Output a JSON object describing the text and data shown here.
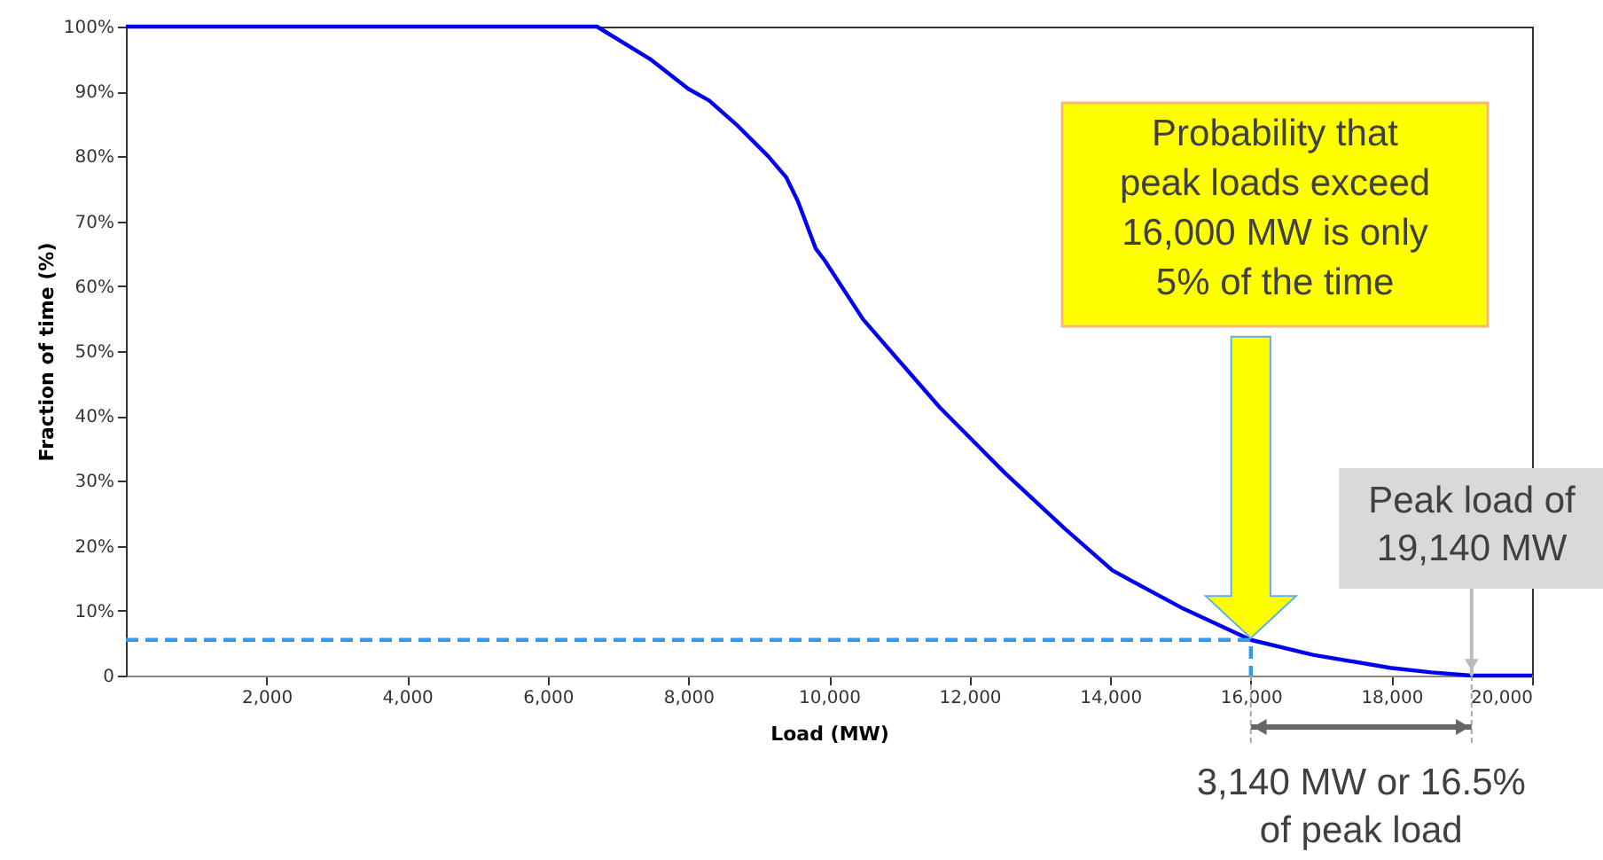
{
  "chart_data": {
    "type": "line",
    "xlabel": "Load (MW)",
    "ylabel": "Fraction of time (%)",
    "xlim": [
      0,
      20000
    ],
    "ylim": [
      0,
      100
    ],
    "xticks": [
      {
        "value": 2000,
        "label": "2,000"
      },
      {
        "value": 4000,
        "label": "4,000"
      },
      {
        "value": 6000,
        "label": "6,000"
      },
      {
        "value": 8000,
        "label": "8,000"
      },
      {
        "value": 10000,
        "label": "10,000"
      },
      {
        "value": 12000,
        "label": "12,000"
      },
      {
        "value": 14000,
        "label": "14,000"
      },
      {
        "value": 16000,
        "label": "16,000"
      },
      {
        "value": 18000,
        "label": "18,000"
      },
      {
        "value": 20000,
        "label": "20,000"
      }
    ],
    "yticks": [
      0,
      {
        "value": 10,
        "label": "10%"
      },
      {
        "value": 20,
        "label": "20%"
      },
      {
        "value": 30,
        "label": "30%"
      },
      {
        "value": 40,
        "label": "40%"
      },
      {
        "value": 50,
        "label": "50%"
      },
      {
        "value": 60,
        "label": "60%"
      },
      {
        "value": 70,
        "label": "70%"
      },
      {
        "value": 80,
        "label": "80%"
      },
      {
        "value": 90,
        "label": "90%"
      },
      {
        "value": 100,
        "label": "100%"
      }
    ],
    "grid": false,
    "marker": "none",
    "series": [
      {
        "color": "#0000ee",
        "line_style": "solid",
        "x": [
          0,
          6700,
          7455,
          8000,
          8295,
          8674,
          9137,
          9390,
          9558,
          9811,
          9937,
          10484,
          10989,
          11578,
          12504,
          13359,
          14032,
          15042,
          16000,
          16884,
          17979,
          18569,
          19140,
          20000
        ],
        "values": [
          100,
          100,
          95.0,
          90.4,
          88.6,
          85.0,
          80.0,
          76.8,
          73.1,
          65.8,
          64.0,
          54.9,
          48.6,
          41.3,
          31.2,
          22.6,
          16.2,
          10.3,
          5.5,
          3.2,
          1.2,
          0.5,
          0,
          0
        ]
      },
      {
        "color": "#3399ee",
        "line_style": "dashed",
        "x": [
          0,
          16000,
          16000
        ],
        "values": [
          5.5,
          5.5,
          0
        ]
      }
    ],
    "annotations": [
      "Probability that peak loads exceed 16,000 MW is only 5% of the time",
      {
        "text": "Peak load of 19,140 MW",
        "x": 19140,
        "y": 0
      },
      "3,140 MW or 16.5% of peak load"
    ]
  }
}
